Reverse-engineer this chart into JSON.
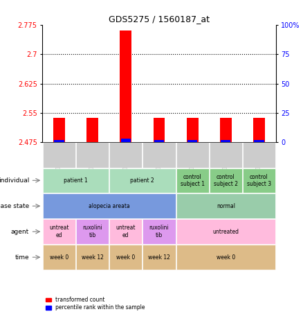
{
  "title": "GDS5275 / 1560187_at",
  "samples": [
    "GSM1414312",
    "GSM1414313",
    "GSM1414314",
    "GSM1414315",
    "GSM1414316",
    "GSM1414317",
    "GSM1414318"
  ],
  "red_values": [
    2.537,
    2.537,
    2.762,
    2.537,
    2.537,
    2.537,
    2.537
  ],
  "blue_values": [
    2.481,
    2.475,
    2.483,
    2.481,
    2.481,
    2.481,
    2.481
  ],
  "baseline": 2.475,
  "ylim_left": [
    2.475,
    2.775
  ],
  "yticks_left": [
    2.475,
    2.55,
    2.625,
    2.7,
    2.775
  ],
  "yticks_right": [
    0,
    25,
    50,
    75,
    100
  ],
  "ylim_right": [
    0,
    100
  ],
  "grid_lines": [
    2.7,
    2.625,
    2.55
  ],
  "annotation_rows": {
    "individual": {
      "groups": [
        {
          "label": "patient 1",
          "cols": [
            0,
            1
          ],
          "color": "#aaddbb"
        },
        {
          "label": "patient 2",
          "cols": [
            2,
            3
          ],
          "color": "#aaddbb"
        },
        {
          "label": "control\nsubject 1",
          "cols": [
            4
          ],
          "color": "#88cc88"
        },
        {
          "label": "control\nsubject 2",
          "cols": [
            5
          ],
          "color": "#88cc88"
        },
        {
          "label": "control\nsubject 3",
          "cols": [
            6
          ],
          "color": "#88cc88"
        }
      ]
    },
    "disease_state": {
      "groups": [
        {
          "label": "alopecia areata",
          "cols": [
            0,
            1,
            2,
            3
          ],
          "color": "#7799dd"
        },
        {
          "label": "normal",
          "cols": [
            4,
            5,
            6
          ],
          "color": "#99ccaa"
        }
      ]
    },
    "agent": {
      "groups": [
        {
          "label": "untreat\ned",
          "cols": [
            0
          ],
          "color": "#ffbbdd"
        },
        {
          "label": "ruxolini\ntib",
          "cols": [
            1
          ],
          "color": "#dd99ee"
        },
        {
          "label": "untreat\ned",
          "cols": [
            2
          ],
          "color": "#ffbbdd"
        },
        {
          "label": "ruxolini\ntib",
          "cols": [
            3
          ],
          "color": "#dd99ee"
        },
        {
          "label": "untreated",
          "cols": [
            4,
            5,
            6
          ],
          "color": "#ffbbdd"
        }
      ]
    },
    "time": {
      "groups": [
        {
          "label": "week 0",
          "cols": [
            0
          ],
          "color": "#ddbb88"
        },
        {
          "label": "week 12",
          "cols": [
            1
          ],
          "color": "#ddbb88"
        },
        {
          "label": "week 0",
          "cols": [
            2
          ],
          "color": "#ddbb88"
        },
        {
          "label": "week 12",
          "cols": [
            3
          ],
          "color": "#ddbb88"
        },
        {
          "label": "week 0",
          "cols": [
            4,
            5,
            6
          ],
          "color": "#ddbb88"
        }
      ]
    }
  },
  "rows_keys": [
    "individual",
    "disease_state",
    "agent",
    "time"
  ],
  "row_labels": [
    "individual",
    "disease state",
    "agent",
    "time"
  ],
  "legend_red": "transformed count",
  "legend_blue": "percentile rank within the sample",
  "bar_width": 0.35,
  "sample_col_color": "#cccccc"
}
